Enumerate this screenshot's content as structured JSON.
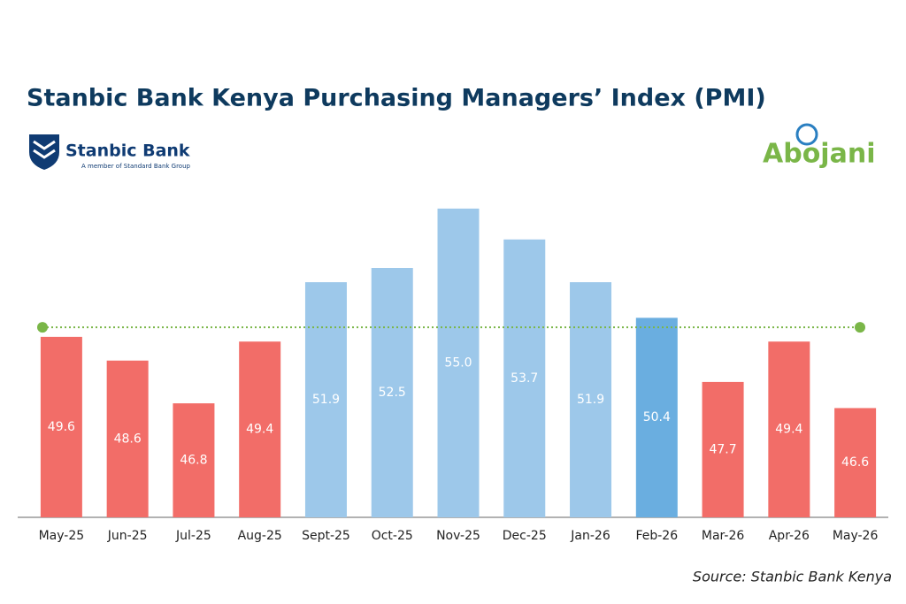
{
  "chart_data": {
    "type": "bar",
    "title": "Stanbic Bank Kenya Purchasing Managers’ Index (PMI)",
    "source": "Source: Stanbic Bank Kenya",
    "categories": [
      "May-25",
      "Jun-25",
      "Jul-25",
      "Aug-25",
      "Sept-25",
      "Oct-25",
      "Nov-25",
      "Dec-25",
      "Jan-26",
      "Feb-26",
      "Mar-26",
      "Apr-26",
      "May-26"
    ],
    "values": [
      49.6,
      48.6,
      46.8,
      49.4,
      51.9,
      52.5,
      55.0,
      53.7,
      51.9,
      50.4,
      47.7,
      49.4,
      46.6
    ],
    "value_labels": [
      "49.6",
      "48.6",
      "46.8",
      "49.4",
      "51.9",
      "52.5",
      "55.0",
      "53.7",
      "51.9",
      "50.4",
      "47.7",
      "49.4",
      "46.6"
    ],
    "colors": [
      "#f26d68",
      "#f26d68",
      "#f26d68",
      "#f26d68",
      "#9dc8ea",
      "#9dc8ea",
      "#9dc8ea",
      "#9dc8ea",
      "#9dc8ea",
      "#6aaee0",
      "#f26d68",
      "#f26d68",
      "#f26d68"
    ],
    "ylim": [
      42,
      56
    ],
    "reference_line": {
      "value": 50,
      "color": "#7ab648"
    }
  },
  "logos": {
    "left": {
      "name": "Stanbic Bank",
      "tagline": "A member of Standard Bank Group"
    },
    "right": {
      "name": "Abojani"
    }
  }
}
